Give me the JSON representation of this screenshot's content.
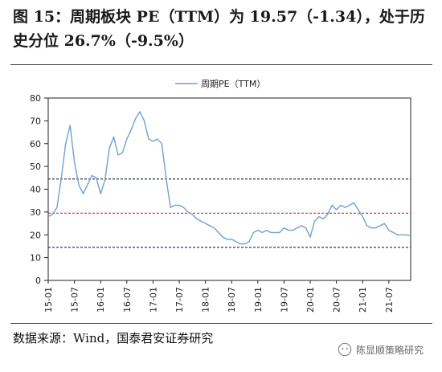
{
  "title": "图 15：周期板块 PE（TTM）为 19.57（-1.34），处于历史分位 26.7%（-9.5%）",
  "source": "数据来源：Wind，国泰君安证券研究",
  "watermark": "陈显顺策略研究",
  "chart_data": {
    "type": "line",
    "title": "",
    "xlabel": "",
    "ylabel": "",
    "ylim": [
      0,
      80
    ],
    "yticks": [
      0,
      10,
      20,
      30,
      40,
      50,
      60,
      70,
      80
    ],
    "xlim": [
      "2015-01",
      "2021-12"
    ],
    "xticks": [
      "15-01",
      "15-07",
      "16-01",
      "16-07",
      "17-01",
      "17-07",
      "18-01",
      "18-07",
      "19-01",
      "19-07",
      "20-01",
      "20-07",
      "21-01",
      "21-07"
    ],
    "grid": false,
    "legend": "top-center",
    "colors": {
      "series": "#6fa0d0",
      "mean": "#2b3a67",
      "current": "#d9262b"
    },
    "series": [
      {
        "name": "周期PE（TTM）",
        "x": [
          "2015-01",
          "2015-02",
          "2015-03",
          "2015-04",
          "2015-05",
          "2015-06",
          "2015-07",
          "2015-08",
          "2015-09",
          "2015-10",
          "2015-11",
          "2015-12",
          "2016-01",
          "2016-02",
          "2016-03",
          "2016-04",
          "2016-05",
          "2016-06",
          "2016-07",
          "2016-08",
          "2016-09",
          "2016-10",
          "2016-11",
          "2016-12",
          "2017-01",
          "2017-02",
          "2017-03",
          "2017-04",
          "2017-05",
          "2017-06",
          "2017-07",
          "2017-08",
          "2017-09",
          "2017-10",
          "2017-11",
          "2017-12",
          "2018-01",
          "2018-02",
          "2018-03",
          "2018-04",
          "2018-05",
          "2018-06",
          "2018-07",
          "2018-08",
          "2018-09",
          "2018-10",
          "2018-11",
          "2018-12",
          "2019-01",
          "2019-02",
          "2019-03",
          "2019-04",
          "2019-05",
          "2019-06",
          "2019-07",
          "2019-08",
          "2019-09",
          "2019-10",
          "2019-11",
          "2019-12",
          "2020-01",
          "2020-02",
          "2020-03",
          "2020-04",
          "2020-05",
          "2020-06",
          "2020-07",
          "2020-08",
          "2020-09",
          "2020-10",
          "2020-11",
          "2020-12",
          "2021-01",
          "2021-02",
          "2021-03",
          "2021-04",
          "2021-05",
          "2021-06",
          "2021-07",
          "2021-08",
          "2021-09",
          "2021-10",
          "2021-11",
          "2021-12"
        ],
        "values": [
          28,
          29,
          32,
          45,
          60,
          68,
          52,
          42,
          38,
          42,
          46,
          45,
          38,
          44,
          58,
          63,
          55,
          56,
          62,
          66,
          71,
          74,
          70,
          62,
          61,
          62,
          60,
          45,
          32,
          33,
          33,
          32,
          30,
          29,
          27,
          26,
          25,
          24,
          23,
          21,
          19,
          18,
          18,
          17,
          16,
          16,
          17,
          21,
          22,
          21,
          22,
          21,
          21,
          21,
          23,
          22,
          22,
          23,
          24,
          23,
          19,
          26,
          28,
          27,
          29,
          33,
          31,
          33,
          32,
          33,
          34,
          31,
          28,
          24,
          23,
          23,
          24,
          25,
          22,
          21,
          20,
          20,
          20,
          19.57
        ]
      }
    ],
    "reference_lines": [
      {
        "label": "upper",
        "value": 44.5,
        "style": "dashed",
        "color": "#2b3a67"
      },
      {
        "label": "mean",
        "value": 29.5,
        "style": "dashed",
        "color": "#d9262b"
      },
      {
        "label": "lower",
        "value": 14.5,
        "style": "dashed",
        "color": "#2b3a67"
      }
    ]
  }
}
